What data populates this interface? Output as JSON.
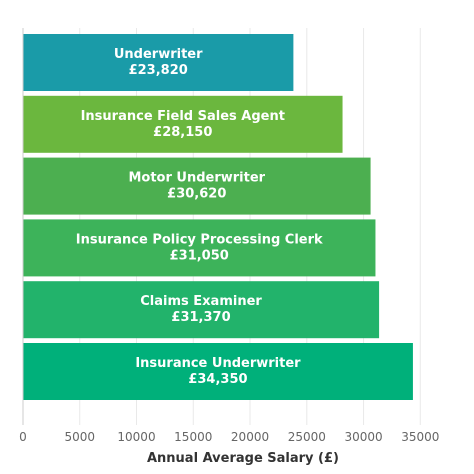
{
  "chart_data": {
    "type": "bar",
    "orientation": "horizontal",
    "categories": [
      "Underwriter",
      "Insurance Field Sales Agent",
      "Motor Underwriter",
      "Insurance Policy Processing Clerk",
      "Claims Examiner",
      "Insurance Underwriter"
    ],
    "values": [
      23820,
      28150,
      30620,
      31050,
      31370,
      34350
    ],
    "value_labels": [
      "£23,820",
      "£28,150",
      "£30,620",
      "£31,050",
      "£31,370",
      "£34,350"
    ],
    "colors": [
      "#1a9ba8",
      "#6bb73e",
      "#4caf50",
      "#3db35a",
      "#22b36b",
      "#00b07a"
    ],
    "title": "",
    "xlabel": "Annual Average Salary (£)",
    "ylabel": "",
    "xlim": [
      0,
      37000
    ],
    "xticks": [
      0,
      5000,
      10000,
      15000,
      20000,
      25000,
      30000,
      35000
    ],
    "xtick_labels": [
      "0",
      "5000",
      "10000",
      "15000",
      "20000",
      "25000",
      "30000",
      "35000"
    ],
    "grid": true,
    "legend": "none"
  }
}
